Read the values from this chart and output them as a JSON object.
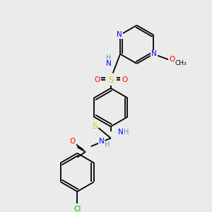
{
  "bg_color": "#ebebeb",
  "atom_colors": {
    "C": "#000000",
    "N": "#0000ff",
    "O": "#ff0000",
    "S": "#cccc00",
    "Cl": "#00bb00",
    "H": "#6699aa"
  },
  "lw": 1.3,
  "fontsize": 7.5
}
